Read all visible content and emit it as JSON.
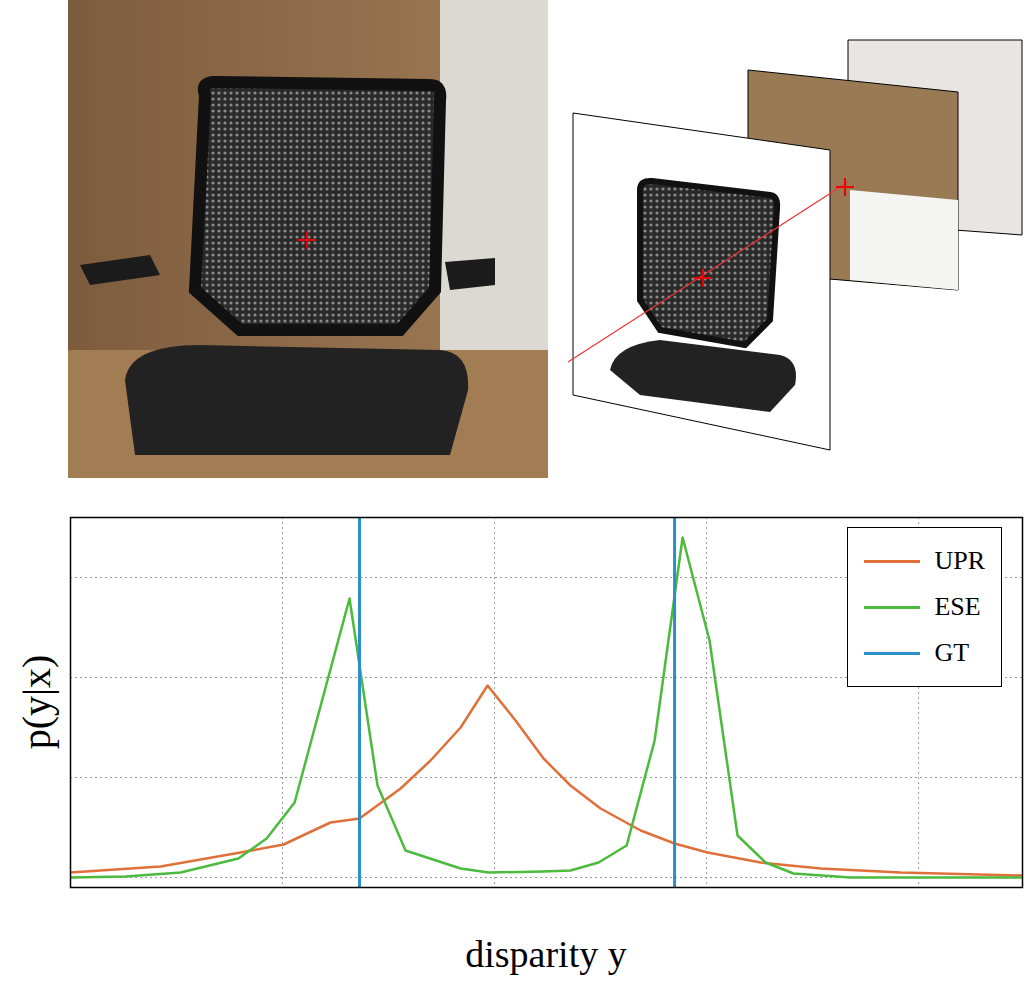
{
  "chart_data": {
    "type": "line",
    "xlabel": "disparity y",
    "ylabel": "p(y|x)",
    "xlim": [
      0,
      44.9
    ],
    "xticks": [
      10,
      20,
      30,
      40
    ],
    "ylim": [
      -0.1,
      3.6
    ],
    "yticks": [
      0,
      1,
      2,
      3
    ],
    "grid": true,
    "tick_labels": false,
    "legend": "top-right",
    "series": [
      {
        "name": "UPR",
        "color": "#e0703a",
        "x": [
          0,
          4.25,
          8.02,
          10.05,
          12.26,
          13.63,
          15.57,
          16.98,
          18.4,
          19.67,
          20.99,
          22.31,
          23.58,
          25.0,
          26.89,
          28.49,
          30.05,
          32.55,
          35.38,
          39.15,
          44.9
        ],
        "values": [
          0.05,
          0.11,
          0.25,
          0.33,
          0.55,
          0.59,
          0.89,
          1.17,
          1.5,
          1.92,
          1.57,
          1.19,
          0.92,
          0.69,
          0.47,
          0.34,
          0.25,
          0.15,
          0.09,
          0.05,
          0.02
        ]
      },
      {
        "name": "ESE",
        "color": "#4cba3c",
        "x": [
          0,
          2.59,
          5.19,
          7.92,
          9.25,
          10.57,
          13.16,
          14.48,
          15.8,
          18.4,
          19.72,
          22.31,
          23.58,
          24.91,
          26.23,
          27.55,
          28.87,
          30.14,
          31.46,
          32.78,
          34.1,
          36.79,
          44.9
        ],
        "values": [
          0,
          0.01,
          0.05,
          0.19,
          0.39,
          0.75,
          2.79,
          0.92,
          0.27,
          0.09,
          0.05,
          0.06,
          0.07,
          0.15,
          0.32,
          1.37,
          3.4,
          2.37,
          0.42,
          0.15,
          0.04,
          0,
          0
        ]
      },
      {
        "name": "GT",
        "type": "rule",
        "color": "#2a8fc8",
        "x": [
          13.63,
          28.49
        ]
      }
    ]
  }
}
